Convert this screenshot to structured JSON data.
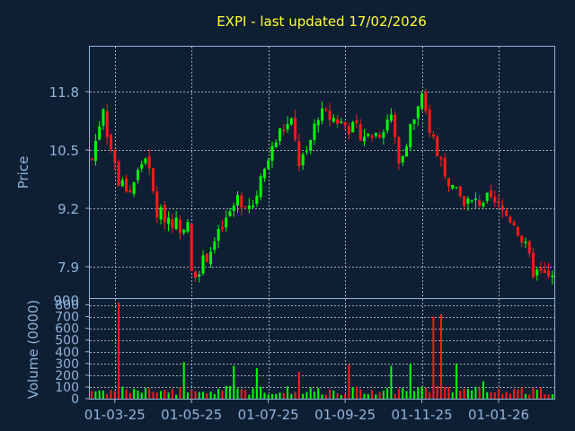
{
  "chart_data": {
    "type": "candlestick",
    "title": "EXPI - last updated 17/02/2026",
    "colors": {
      "background": "#0f1f33",
      "up": "#00ff00",
      "down": "#ff1a1a",
      "title": "#ffff33",
      "axis_text": "#8fb3d9",
      "grid": "#d8d8d8"
    },
    "grid": true,
    "price_panel": {
      "ylabel": "Price",
      "ylim": [
        7.2,
        12.8
      ],
      "yticks": [
        7.9,
        9.2,
        10.5,
        11.8
      ],
      "ytick_labels": [
        "7.9",
        "9.2",
        "10.5",
        "11.8"
      ],
      "bottom_label": "900"
    },
    "volume_panel": {
      "ylabel": "Volume (0000)",
      "ylim": [
        0,
        850
      ],
      "yticks": [
        0,
        100,
        200,
        300,
        400,
        500,
        600,
        700,
        800
      ],
      "ytick_labels": [
        "0",
        "100",
        "200",
        "300",
        "400",
        "500",
        "600",
        "700",
        "800"
      ]
    },
    "x": {
      "tick_labels": [
        "01-03-25",
        "01-05-25",
        "01-07-25",
        "01-09-25",
        "01-11-25",
        "01-01-26"
      ],
      "tick_positions": [
        6,
        26,
        46,
        66,
        86,
        106
      ],
      "count": 121
    },
    "price_path": [
      [
        0,
        10.3
      ],
      [
        3,
        11.5
      ],
      [
        4,
        10.9
      ],
      [
        7,
        9.8
      ],
      [
        10,
        9.6
      ],
      [
        14,
        10.4
      ],
      [
        17,
        9.1
      ],
      [
        20,
        9.0
      ],
      [
        23,
        8.8
      ],
      [
        25,
        8.9
      ],
      [
        26,
        7.7
      ],
      [
        29,
        8.0
      ],
      [
        33,
        8.6
      ],
      [
        38,
        9.4
      ],
      [
        42,
        9.3
      ],
      [
        46,
        10.3
      ],
      [
        49,
        10.9
      ],
      [
        52,
        11.1
      ],
      [
        54,
        10.2
      ],
      [
        56,
        10.4
      ],
      [
        59,
        11.3
      ],
      [
        63,
        11.2
      ],
      [
        67,
        11.0
      ],
      [
        72,
        10.8
      ],
      [
        75,
        10.9
      ],
      [
        78,
        11.3
      ],
      [
        80,
        10.2
      ],
      [
        83,
        11.0
      ],
      [
        86,
        11.6
      ],
      [
        88,
        11.0
      ],
      [
        92,
        10.0
      ],
      [
        95,
        9.5
      ],
      [
        99,
        9.3
      ],
      [
        103,
        9.4
      ],
      [
        106,
        9.2
      ],
      [
        110,
        8.9
      ],
      [
        113,
        8.3
      ],
      [
        115,
        7.8
      ],
      [
        120,
        7.6
      ]
    ],
    "volume_base": [
      30,
      110
    ],
    "volume_spikes": [
      [
        7,
        820
      ],
      [
        24,
        310
      ],
      [
        37,
        280
      ],
      [
        43,
        260
      ],
      [
        54,
        230
      ],
      [
        67,
        290
      ],
      [
        78,
        280
      ],
      [
        83,
        300
      ],
      [
        89,
        700
      ],
      [
        91,
        720
      ],
      [
        95,
        300
      ],
      [
        102,
        150
      ]
    ]
  }
}
